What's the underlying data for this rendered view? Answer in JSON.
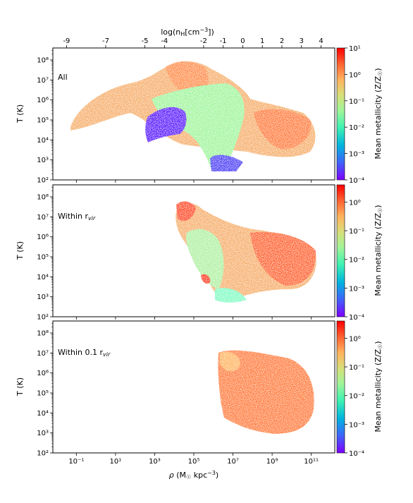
{
  "chart_data": {
    "type": "heatmap",
    "xlabel": "ρ (M☉ kpc⁻³)",
    "top_xlabel": "log(n_H[cm^-3])",
    "ylabel": "T (K)",
    "colorbar_label": "Mean metallicity (Z/Z☉)",
    "x_log_range": [
      -2.2,
      12.2
    ],
    "y_log_range": [
      2,
      8.6
    ],
    "x_ticks": [
      {
        "log": -1,
        "label": "10⁻¹"
      },
      {
        "log": 1,
        "label": "10¹"
      },
      {
        "log": 3,
        "label": "10³"
      },
      {
        "log": 5,
        "label": "10⁵"
      },
      {
        "log": 7,
        "label": "10⁷"
      },
      {
        "log": 9,
        "label": "10⁹"
      },
      {
        "log": 11,
        "label": "10¹¹"
      }
    ],
    "top_ticks": [
      "-9",
      "-7",
      "-5",
      "-4",
      "-2",
      "-1",
      "0",
      "1",
      "2",
      "3",
      "4"
    ],
    "y_ticks": [
      {
        "log": 2,
        "label": "10²"
      },
      {
        "log": 3,
        "label": "10³"
      },
      {
        "log": 4,
        "label": "10⁴"
      },
      {
        "log": 5,
        "label": "10⁵"
      },
      {
        "log": 6,
        "label": "10⁶"
      },
      {
        "log": 7,
        "label": "10⁷"
      },
      {
        "log": 8,
        "label": "10⁸"
      }
    ],
    "colormap": "rainbow",
    "colormap_stops": [
      "#7f00ff",
      "#4062fa",
      "#01b3df",
      "#41f3b1",
      "#7ffcc3",
      "#c1eb6a",
      "#ffb360",
      "#ff6232",
      "#ff0000"
    ],
    "panels": [
      {
        "label": "All",
        "colorbar_ticks": [
          "10¹",
          "10⁰",
          "10⁻¹",
          "10⁻²",
          "10⁻³",
          "10⁻⁴"
        ],
        "colorbar_log_range": [
          -4,
          1
        ]
      },
      {
        "label": "Within r_vir",
        "colorbar_ticks": [
          "10⁰",
          "10⁻¹",
          "10⁻²",
          "10⁻³",
          "10⁻⁴"
        ],
        "colorbar_log_range": [
          -4,
          0.6
        ]
      },
      {
        "label": "Within 0.1 r_vir",
        "colorbar_ticks": [
          "10⁰",
          "10⁻¹",
          "10⁻²",
          "10⁻³",
          "10⁻⁴"
        ],
        "colorbar_log_range": [
          -4,
          0.6
        ]
      }
    ]
  }
}
